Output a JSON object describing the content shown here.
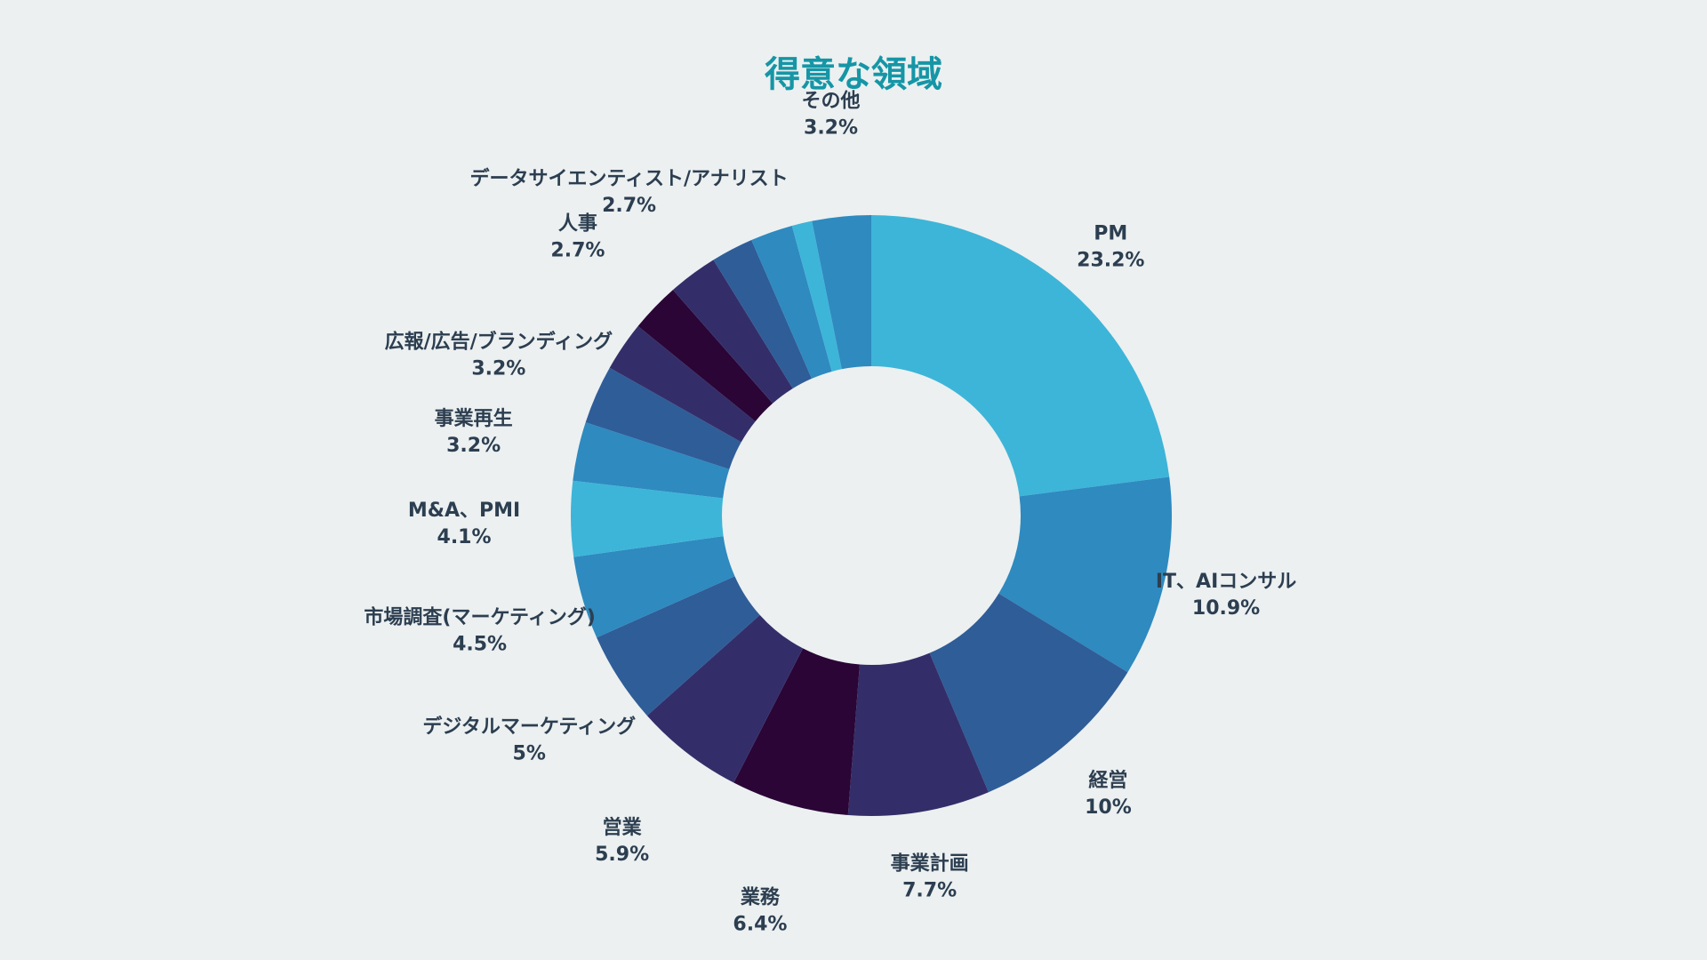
{
  "chart_data": {
    "type": "pie",
    "variant": "donut",
    "title": "得意な領域",
    "slices": [
      {
        "label": "PM",
        "value": 23.2,
        "display": "23.2%",
        "color": "#3db5d8"
      },
      {
        "label": "IT、AIコンサル",
        "value": 10.9,
        "display": "10.9%",
        "color": "#2e8abf"
      },
      {
        "label": "経営",
        "value": 10.0,
        "display": "10%",
        "color": "#2f5d98"
      },
      {
        "label": "事業計画",
        "value": 7.7,
        "display": "7.7%",
        "color": "#332e69"
      },
      {
        "label": "業務",
        "value": 6.4,
        "display": "6.4%",
        "color": "#2a0536"
      },
      {
        "label": "営業",
        "value": 5.9,
        "display": "5.9%",
        "color": "#332e69"
      },
      {
        "label": "デジタルマーケティング",
        "value": 5.0,
        "display": "5%",
        "color": "#2f5d98"
      },
      {
        "label": "市場調査(マーケティング)",
        "value": 4.5,
        "display": "4.5%",
        "color": "#2e8abf"
      },
      {
        "label": "M&A、PMI",
        "value": 4.1,
        "display": "4.1%",
        "color": "#3db5d8"
      },
      {
        "label": "事業再生",
        "value": 3.2,
        "display": "3.2%",
        "color": "#2e8abf"
      },
      {
        "label": "広報/広告/ブランディング",
        "value": 3.2,
        "display": "3.2%",
        "color": "#2f5d98"
      },
      {
        "label": "",
        "value": 2.7,
        "display": "",
        "color": "#332e69"
      },
      {
        "label": "人事",
        "value": 2.7,
        "display": "2.7%",
        "color": "#2a0536"
      },
      {
        "label": "データサイエンティスト/アナリスト",
        "value": 2.7,
        "display": "2.7%",
        "color": "#332e69"
      },
      {
        "label": "",
        "value": 2.3,
        "display": "",
        "color": "#2f5d98"
      },
      {
        "label": "",
        "value": 2.3,
        "display": "",
        "color": "#2e8abf"
      },
      {
        "label": "",
        "value": 1.1,
        "display": "",
        "color": "#3db5d8"
      },
      {
        "label": "その他",
        "value": 3.2,
        "display": "3.2%",
        "color": "#2e8abf"
      }
    ]
  },
  "colors": {
    "background": "#ecf0f1",
    "title": "#1596a6",
    "label": "#2c3e50"
  }
}
